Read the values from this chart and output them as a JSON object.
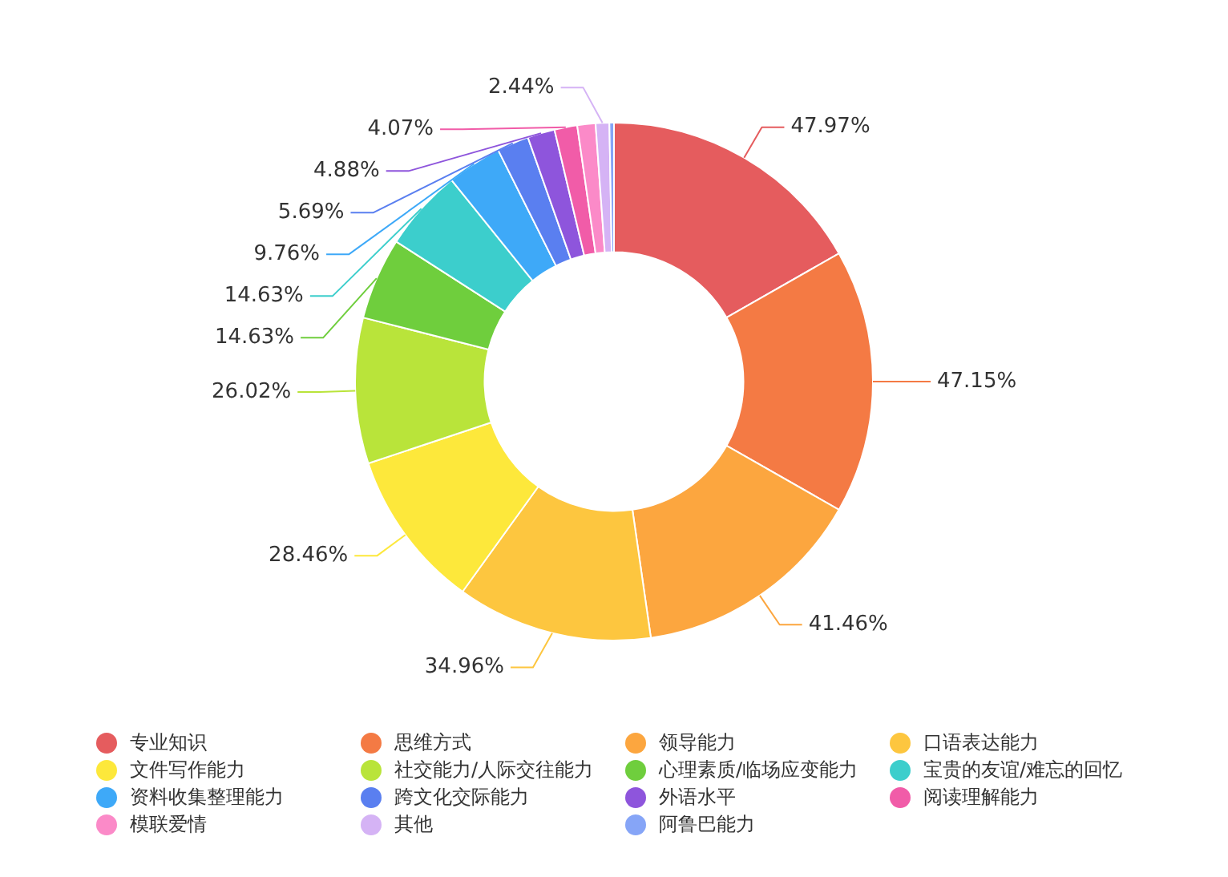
{
  "chart_data": {
    "type": "donut",
    "categories": [
      "专业知识",
      "思维方式",
      "领导能力",
      "口语表达能力",
      "文件写作能力",
      "社交能力/人际交往能力",
      "心理素质/临场应变能力",
      "宝贵的友谊/难忘的回忆",
      "资料收集整理能力",
      "跨文化交际能力",
      "外语水平",
      "阅读理解能力",
      "模联爱情",
      "其他",
      "阿鲁巴能力"
    ],
    "values": [
      47.97,
      47.15,
      41.46,
      34.96,
      28.46,
      26.02,
      14.63,
      14.63,
      9.76,
      5.69,
      4.88,
      4.07,
      3.25,
      2.44,
      0.81
    ],
    "value_labels": [
      "47.97%",
      "47.15%",
      "41.46%",
      "34.96%",
      "28.46%",
      "26.02%",
      "14.63%",
      "14.63%",
      "9.76%",
      "5.69%",
      "4.88%",
      "4.07%",
      null,
      "2.44%",
      null
    ],
    "colors": [
      "#e55c5e",
      "#f47a44",
      "#fca63f",
      "#fdc63f",
      "#fde83b",
      "#b9e43a",
      "#6fce3d",
      "#3ccecc",
      "#3ea9f8",
      "#5a7ff0",
      "#8e55dc",
      "#f15ca8",
      "#fb8ac8",
      "#d5b3f5",
      "#86a5f7"
    ],
    "legend": "bottom"
  }
}
